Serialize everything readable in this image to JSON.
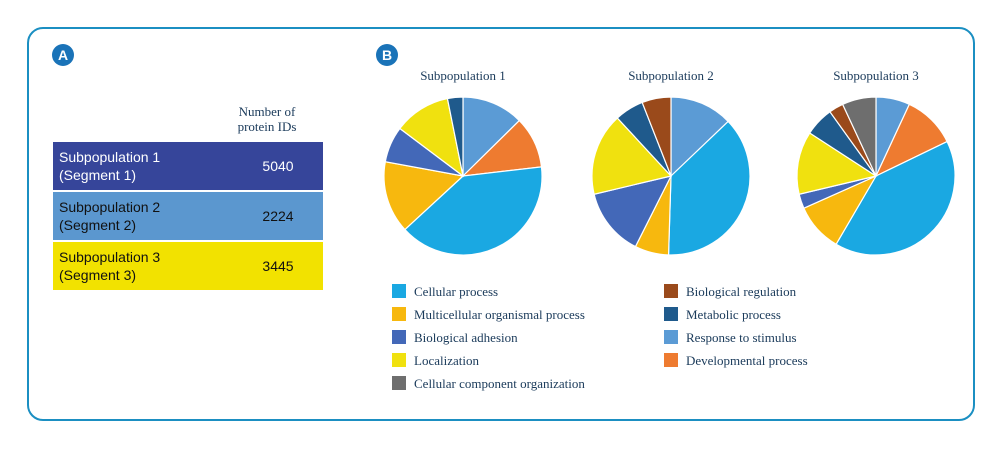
{
  "panel_a": {
    "badge": "A",
    "header": "Number of protein IDs",
    "rows": [
      {
        "name_line1": "Subpopulation 1",
        "name_line2": "(Segment 1)",
        "count": "5040",
        "bg": "#36459a",
        "text_color": "#ffffff"
      },
      {
        "name_line1": "Subpopulation 2",
        "name_line2": "(Segment 2)",
        "count": "2224",
        "bg": "#5b97cf",
        "text_color": "#111111"
      },
      {
        "name_line1": "Subpopulation 3",
        "name_line2": "(Segment 3)",
        "count": "3445",
        "bg": "#f2e200",
        "text_color": "#111111"
      }
    ]
  },
  "panel_b": {
    "badge": "B"
  },
  "chart_data": {
    "type": "pie",
    "categories": [
      "Cellular process",
      "Multicellular organismal process",
      "Biological adhesion",
      "Localization",
      "Cellular component organization",
      "Biological regulation",
      "Metabolic process",
      "Response to stimulus",
      "Developmental process"
    ],
    "colors": {
      "Cellular process": "#1aa8e2",
      "Multicellular organismal process": "#f7b80e",
      "Biological adhesion": "#4368b8",
      "Localization": "#f0e10f",
      "Cellular component organization": "#6e6e6e",
      "Biological regulation": "#9a4a1b",
      "Metabolic process": "#1f5a8c",
      "Response to stimulus": "#5b9bd5",
      "Developmental process": "#ee7b30"
    },
    "series": [
      {
        "name": "Subpopulation 1",
        "slices": [
          {
            "category": "Response to stimulus",
            "value": 12
          },
          {
            "category": "Developmental process",
            "value": 10
          },
          {
            "category": "Cellular process",
            "value": 38
          },
          {
            "category": "Multicellular organismal process",
            "value": 14
          },
          {
            "category": "Biological adhesion",
            "value": 7
          },
          {
            "category": "Localization",
            "value": 11
          },
          {
            "category": "Metabolic process",
            "value": 3
          }
        ]
      },
      {
        "name": "Subpopulation 2",
        "slices": [
          {
            "category": "Response to stimulus",
            "value": 13
          },
          {
            "category": "Cellular process",
            "value": 38
          },
          {
            "category": "Multicellular organismal process",
            "value": 7
          },
          {
            "category": "Biological adhesion",
            "value": 14
          },
          {
            "category": "Localization",
            "value": 17
          },
          {
            "category": "Metabolic process",
            "value": 6
          },
          {
            "category": "Biological regulation",
            "value": 6
          }
        ]
      },
      {
        "name": "Subpopulation 3",
        "slices": [
          {
            "category": "Response to stimulus",
            "value": 7
          },
          {
            "category": "Developmental process",
            "value": 11
          },
          {
            "category": "Cellular process",
            "value": 41
          },
          {
            "category": "Multicellular organismal process",
            "value": 10
          },
          {
            "category": "Biological adhesion",
            "value": 3
          },
          {
            "category": "Localization",
            "value": 13
          },
          {
            "category": "Metabolic process",
            "value": 6
          },
          {
            "category": "Biological regulation",
            "value": 3
          },
          {
            "category": "Cellular component organization",
            "value": 7
          }
        ]
      }
    ],
    "legend_left": [
      "Cellular process",
      "Multicellular organismal process",
      "Biological adhesion",
      "Localization",
      "Cellular component organization"
    ],
    "legend_right": [
      "Biological regulation",
      "Metabolic process",
      "Response to stimulus",
      "Developmental process"
    ],
    "legend_placement": "bottom"
  }
}
